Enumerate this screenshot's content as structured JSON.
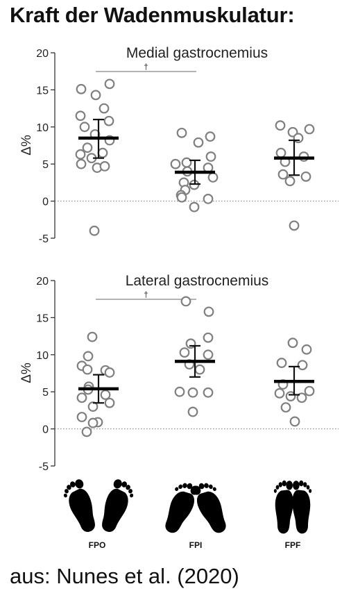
{
  "heading": "Kraft der Wadenmuskulatur:",
  "footer": "aus: Nunes et al. (2020)",
  "chart_data": [
    {
      "type": "scatter",
      "title": "Medial gastrocnemius",
      "ylabel": "Δ%",
      "ylim": [
        -5,
        20
      ],
      "yticks": [
        -5,
        0,
        5,
        10,
        15,
        20
      ],
      "categories": [
        "FPO",
        "FPI",
        "FPF"
      ],
      "significance": {
        "from": "FPO",
        "to": "FPI",
        "symbol": "†"
      },
      "series": [
        {
          "category": "FPO",
          "mean": 8.5,
          "ci": [
            5.8,
            11.0
          ],
          "values": [
            15.1,
            15.8,
            14.3,
            12.5,
            11.5,
            10.8,
            10.0,
            9.0,
            8.2,
            7.2,
            6.5,
            6.3,
            5.8,
            5.0,
            4.5,
            4.7,
            -4.0
          ]
        },
        {
          "category": "FPI",
          "mean": 3.9,
          "ci": [
            2.3,
            5.5
          ],
          "values": [
            9.2,
            8.7,
            7.9,
            6.0,
            5.2,
            5.0,
            4.5,
            4.0,
            3.2,
            2.5,
            2.2,
            1.5,
            0.8,
            0.5,
            0.3,
            -0.8
          ]
        },
        {
          "category": "FPF",
          "mean": 5.8,
          "ci": [
            3.5,
            8.2
          ],
          "values": [
            10.2,
            9.7,
            9.3,
            8.5,
            6.5,
            6.0,
            5.3,
            3.6,
            3.3,
            2.7,
            -3.3
          ]
        }
      ]
    },
    {
      "type": "scatter",
      "title": "Lateral gastrocnemius",
      "ylabel": "Δ%",
      "ylim": [
        -5,
        20
      ],
      "yticks": [
        -5,
        0,
        5,
        10,
        15,
        20
      ],
      "categories": [
        "FPO",
        "FPI",
        "FPF"
      ],
      "significance": {
        "from": "FPO",
        "to": "FPI",
        "symbol": "†"
      },
      "series": [
        {
          "category": "FPO",
          "mean": 5.4,
          "ci": [
            3.5,
            7.3
          ],
          "values": [
            12.4,
            9.8,
            8.5,
            8.0,
            7.9,
            7.6,
            5.7,
            5.3,
            4.6,
            4.2,
            3.5,
            3.0,
            1.6,
            0.9,
            0.8,
            -0.4
          ]
        },
        {
          "category": "FPI",
          "mean": 9.1,
          "ci": [
            7.0,
            11.2
          ],
          "values": [
            17.2,
            15.8,
            12.3,
            11.5,
            10.3,
            10.0,
            8.7,
            8.0,
            5.0,
            4.9,
            4.9,
            2.3
          ]
        },
        {
          "category": "FPF",
          "mean": 6.4,
          "ci": [
            4.6,
            8.4
          ],
          "values": [
            11.6,
            10.7,
            8.9,
            8.6,
            6.0,
            5.1,
            4.8,
            4.4,
            4.2,
            2.9,
            1.0
          ]
        }
      ]
    }
  ],
  "feet": {
    "labels": [
      "FPO",
      "FPI",
      "FPF"
    ],
    "icon_names": [
      "feet-pointing-out-icon",
      "feet-pointing-in-icon",
      "feet-pointing-forward-icon"
    ]
  }
}
